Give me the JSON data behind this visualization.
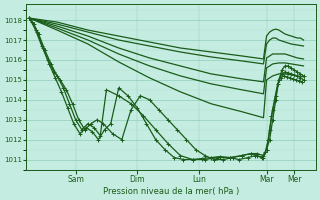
{
  "title": "Pression niveau de la mer( hPa )",
  "bg_color": "#c5ece0",
  "grid_major_color": "#8ecfba",
  "grid_minor_color": "#b0ddd0",
  "line_color": "#1a5c1a",
  "ylim": [
    1010.5,
    1018.8
  ],
  "yticks": [
    1011,
    1012,
    1013,
    1014,
    1015,
    1016,
    1017,
    1018
  ],
  "xlim": [
    0,
    4.7
  ],
  "day_labels": [
    "Sam",
    "Dim",
    "Lun",
    "Mar",
    "Mer"
  ],
  "day_positions": [
    0.8,
    1.8,
    2.8,
    3.9,
    4.35
  ],
  "series": [
    {
      "x": [
        0.05,
        0.5,
        1.0,
        1.5,
        2.0,
        2.5,
        3.0,
        3.5,
        3.85,
        3.9,
        3.95,
        4.0,
        4.05,
        4.1,
        4.15,
        4.2,
        4.25,
        4.3,
        4.35,
        4.4,
        4.45,
        4.5
      ],
      "y": [
        1018.1,
        1017.9,
        1017.5,
        1017.2,
        1016.9,
        1016.6,
        1016.4,
        1016.2,
        1016.05,
        1017.2,
        1017.4,
        1017.5,
        1017.55,
        1017.5,
        1017.4,
        1017.3,
        1017.25,
        1017.2,
        1017.15,
        1017.1,
        1017.1,
        1017.0
      ],
      "lw": 0.9,
      "marker": null
    },
    {
      "x": [
        0.05,
        0.5,
        1.0,
        1.5,
        2.0,
        2.5,
        3.0,
        3.5,
        3.85,
        3.9,
        3.95,
        4.0,
        4.05,
        4.1,
        4.2,
        4.3,
        4.4,
        4.5
      ],
      "y": [
        1018.1,
        1017.8,
        1017.4,
        1017.0,
        1016.7,
        1016.4,
        1016.15,
        1015.95,
        1015.8,
        1016.8,
        1017.0,
        1017.1,
        1017.1,
        1017.0,
        1016.9,
        1016.8,
        1016.75,
        1016.7
      ],
      "lw": 0.9,
      "marker": null
    },
    {
      "x": [
        0.05,
        0.5,
        1.0,
        1.5,
        2.0,
        2.5,
        3.0,
        3.5,
        3.85,
        3.9,
        4.0,
        4.1,
        4.2,
        4.3,
        4.4,
        4.5
      ],
      "y": [
        1018.1,
        1017.7,
        1017.2,
        1016.6,
        1016.1,
        1015.7,
        1015.3,
        1015.05,
        1014.9,
        1016.1,
        1016.3,
        1016.3,
        1016.3,
        1016.2,
        1016.1,
        1016.05
      ],
      "lw": 0.9,
      "marker": null
    },
    {
      "x": [
        0.05,
        0.5,
        1.0,
        1.5,
        2.0,
        2.5,
        3.0,
        3.5,
        3.85,
        3.9,
        4.0,
        4.1,
        4.2,
        4.3,
        4.4,
        4.5
      ],
      "y": [
        1018.1,
        1017.6,
        1017.0,
        1016.3,
        1015.7,
        1015.2,
        1014.8,
        1014.5,
        1014.3,
        1015.6,
        1015.8,
        1015.85,
        1015.85,
        1015.8,
        1015.75,
        1015.7
      ],
      "lw": 0.9,
      "marker": null
    },
    {
      "x": [
        0.05,
        0.5,
        1.0,
        1.5,
        2.0,
        2.5,
        3.0,
        3.5,
        3.85,
        3.9,
        4.0,
        4.1,
        4.2,
        4.3,
        4.4,
        4.5
      ],
      "y": [
        1018.1,
        1017.5,
        1016.8,
        1015.9,
        1015.1,
        1014.4,
        1013.8,
        1013.4,
        1013.1,
        1015.0,
        1015.2,
        1015.3,
        1015.3,
        1015.25,
        1015.2,
        1015.15
      ],
      "lw": 0.9,
      "marker": null
    },
    {
      "x": [
        0.05,
        0.15,
        0.25,
        0.35,
        0.45,
        0.55,
        0.65,
        0.75,
        0.85,
        0.95,
        1.05,
        1.15,
        1.25,
        1.4,
        1.55,
        1.7,
        1.85,
        2.0,
        2.15,
        2.3,
        2.45,
        2.6,
        2.75,
        2.9,
        3.05,
        3.2,
        3.35,
        3.5,
        3.65,
        3.75,
        3.85,
        3.9,
        3.95,
        4.0,
        4.05,
        4.1,
        4.15,
        4.2,
        4.25,
        4.3,
        4.35,
        4.4,
        4.45,
        4.5
      ],
      "y": [
        1018.1,
        1017.5,
        1016.7,
        1016.0,
        1015.4,
        1015.0,
        1014.5,
        1013.8,
        1013.0,
        1012.5,
        1012.8,
        1013.0,
        1012.8,
        1012.3,
        1012.0,
        1013.5,
        1014.2,
        1014.0,
        1013.5,
        1013.0,
        1012.5,
        1012.0,
        1011.5,
        1011.2,
        1011.0,
        1011.0,
        1011.1,
        1011.2,
        1011.3,
        1011.3,
        1011.2,
        1011.5,
        1012.0,
        1013.0,
        1014.0,
        1015.0,
        1015.5,
        1015.7,
        1015.7,
        1015.6,
        1015.5,
        1015.4,
        1015.3,
        1015.2
      ],
      "lw": 0.9,
      "marker": "+"
    },
    {
      "x": [
        0.05,
        0.12,
        0.2,
        0.3,
        0.4,
        0.5,
        0.6,
        0.7,
        0.8,
        0.9,
        1.0,
        1.1,
        1.2,
        1.3,
        1.5,
        1.7,
        1.9,
        2.1,
        2.3,
        2.5,
        2.7,
        2.9,
        3.1,
        3.3,
        3.5,
        3.65,
        3.75,
        3.85,
        3.9,
        3.95,
        4.0,
        4.05,
        4.1,
        4.15,
        4.2,
        4.25,
        4.3,
        4.35,
        4.4,
        4.45,
        4.5
      ],
      "y": [
        1018.1,
        1017.8,
        1017.3,
        1016.5,
        1015.8,
        1015.2,
        1014.6,
        1013.8,
        1013.0,
        1012.5,
        1012.8,
        1012.6,
        1012.2,
        1014.5,
        1014.2,
        1013.8,
        1013.2,
        1012.5,
        1011.8,
        1011.2,
        1011.0,
        1011.0,
        1011.1,
        1011.1,
        1011.2,
        1011.3,
        1011.2,
        1011.1,
        1011.5,
        1012.5,
        1013.5,
        1014.2,
        1015.0,
        1015.3,
        1015.4,
        1015.35,
        1015.3,
        1015.25,
        1015.2,
        1015.1,
        1015.0
      ],
      "lw": 0.9,
      "marker": "+"
    },
    {
      "x": [
        0.05,
        0.1,
        0.18,
        0.27,
        0.37,
        0.47,
        0.57,
        0.67,
        0.77,
        0.87,
        0.97,
        1.07,
        1.17,
        1.27,
        1.37,
        1.5,
        1.65,
        1.8,
        1.95,
        2.1,
        2.25,
        2.4,
        2.55,
        2.7,
        2.85,
        3.0,
        3.15,
        3.3,
        3.45,
        3.6,
        3.72,
        3.82,
        3.88,
        3.93,
        3.98,
        4.03,
        4.08,
        4.13,
        4.18,
        4.23,
        4.28,
        4.33,
        4.38,
        4.43,
        4.48
      ],
      "y": [
        1018.1,
        1017.9,
        1017.4,
        1016.6,
        1015.8,
        1015.1,
        1014.4,
        1013.6,
        1012.8,
        1012.3,
        1012.6,
        1012.4,
        1012.0,
        1012.5,
        1012.8,
        1014.6,
        1014.2,
        1013.6,
        1012.8,
        1012.0,
        1011.5,
        1011.1,
        1011.0,
        1011.0,
        1011.05,
        1011.1,
        1011.15,
        1011.1,
        1011.0,
        1011.1,
        1011.2,
        1011.1,
        1011.4,
        1012.0,
        1013.2,
        1014.0,
        1014.8,
        1015.1,
        1015.2,
        1015.15,
        1015.1,
        1015.05,
        1015.0,
        1014.95,
        1014.9
      ],
      "lw": 0.9,
      "marker": "+"
    }
  ]
}
